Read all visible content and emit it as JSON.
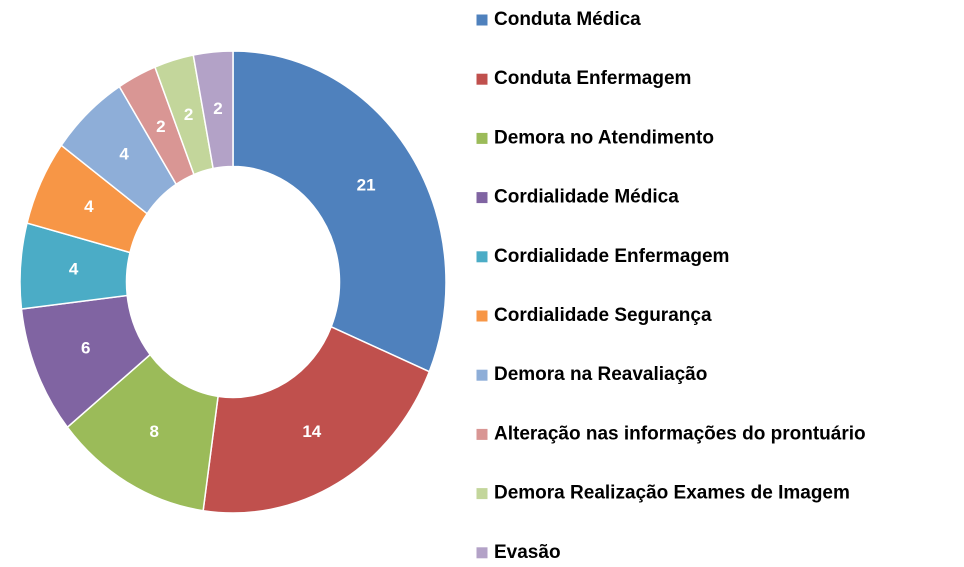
{
  "chart_data": {
    "type": "donut",
    "categories": [
      "Conduta Médica",
      "Conduta Enfermagem",
      "Demora no Atendimento",
      "Cordialidade Médica",
      "Cordialidade Enfermagem",
      "Cordialidade Segurança",
      "Demora na Reavaliação",
      "Alteração nas informações do prontuário",
      "Demora Realização Exames de Imagem",
      "Evasão"
    ],
    "values": [
      21,
      14,
      8,
      6,
      4,
      4,
      4,
      2,
      2,
      2
    ],
    "colors": [
      "#4f81bd",
      "#c0504d",
      "#9bbb59",
      "#8064a2",
      "#4bacc6",
      "#f79646",
      "#8eaed8",
      "#d99694",
      "#c3d69b",
      "#b3a2c7"
    ],
    "legend": "right"
  }
}
